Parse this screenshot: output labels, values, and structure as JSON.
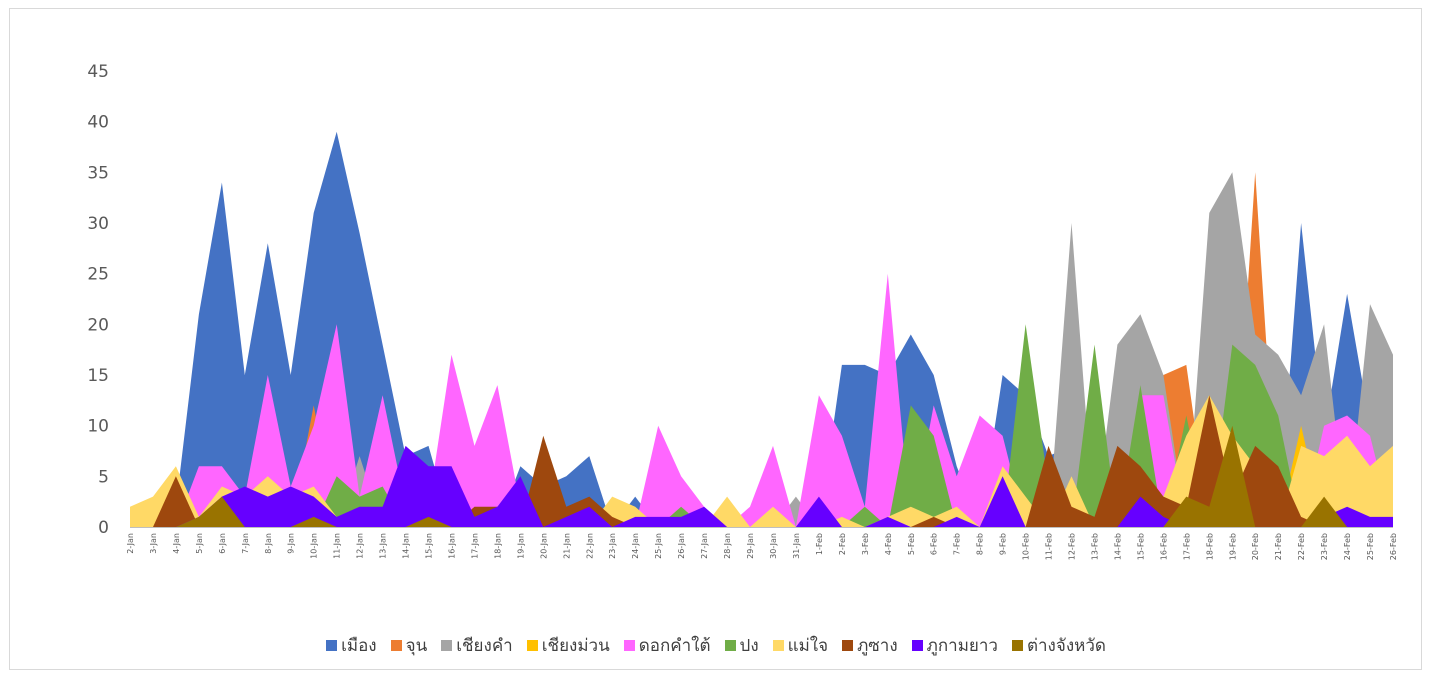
{
  "chart_data": {
    "type": "area",
    "title": "",
    "xlabel": "",
    "ylabel": "",
    "ylim": [
      0,
      45
    ],
    "yticks": [
      0,
      5,
      10,
      15,
      20,
      25,
      30,
      35,
      40,
      45
    ],
    "grid": false,
    "legend_position": "bottom",
    "categories": [
      "2-Jan",
      "3-Jan",
      "4-Jan",
      "5-Jan",
      "6-Jan",
      "7-Jan",
      "8-Jan",
      "9-Jan",
      "10-Jan",
      "11-Jan",
      "12-Jan",
      "13-Jan",
      "14-Jan",
      "15-Jan",
      "16-Jan",
      "17-Jan",
      "18-Jan",
      "19-Jan",
      "20-Jan",
      "21-Jan",
      "22-Jan",
      "23-Jan",
      "24-Jan",
      "25-Jan",
      "26-Jan",
      "27-Jan",
      "28-Jan",
      "29-Jan",
      "30-Jan",
      "31-Jan",
      "1-Feb",
      "2-Feb",
      "3-Feb",
      "4-Feb",
      "5-Feb",
      "6-Feb",
      "7-Feb",
      "8-Feb",
      "9-Feb",
      "10-Feb",
      "11-Feb",
      "12-Feb",
      "13-Feb",
      "14-Feb",
      "15-Feb",
      "16-Feb",
      "17-Feb",
      "18-Feb",
      "19-Feb",
      "20-Feb",
      "21-Feb",
      "22-Feb",
      "23-Feb",
      "24-Feb",
      "25-Feb",
      "26-Feb"
    ],
    "series": [
      {
        "name": "เมือง",
        "color": "#4472C4",
        "values": [
          0,
          0,
          2,
          21,
          34,
          15,
          28,
          15,
          31,
          39,
          29,
          18,
          7,
          8,
          0,
          0,
          0,
          6,
          4,
          5,
          7,
          0,
          3,
          0,
          0,
          0,
          0,
          0,
          0,
          0,
          0,
          16,
          16,
          15,
          19,
          15,
          6,
          0,
          15,
          13,
          7,
          8,
          0,
          0,
          0,
          0,
          0,
          0,
          0,
          0,
          0,
          30,
          9,
          23,
          10,
          9
        ]
      },
      {
        "name": "จุน",
        "color": "#ED7D31",
        "values": [
          0,
          0,
          0,
          0,
          0,
          0,
          0,
          0,
          12,
          0,
          0,
          0,
          0,
          0,
          0,
          0,
          0,
          0,
          0,
          0,
          0,
          0,
          0,
          0,
          0,
          0,
          0,
          0,
          0,
          0,
          0,
          0,
          0,
          0,
          0,
          0,
          0,
          0,
          0,
          0,
          0,
          0,
          0,
          0,
          0,
          15,
          16,
          0,
          0,
          35,
          0,
          0,
          0,
          0,
          0,
          0
        ]
      },
      {
        "name": "เชียงคำ",
        "color": "#A5A5A5",
        "values": [
          0,
          0,
          0,
          0,
          0,
          0,
          0,
          0,
          0,
          0,
          7,
          0,
          0,
          0,
          0,
          0,
          0,
          0,
          0,
          0,
          0,
          0,
          0,
          0,
          0,
          0,
          0,
          0,
          0,
          3,
          0,
          0,
          0,
          0,
          0,
          0,
          0,
          0,
          0,
          0,
          0,
          30,
          0,
          18,
          21,
          15,
          0,
          31,
          35,
          19,
          17,
          13,
          20,
          0,
          22,
          17
        ]
      },
      {
        "name": "เชียงม่วน",
        "color": "#FFC000",
        "values": [
          0,
          0,
          0,
          0,
          0,
          0,
          0,
          0,
          0,
          0,
          0,
          0,
          0,
          0,
          0,
          0,
          0,
          0,
          0,
          0,
          0,
          0,
          0,
          0,
          0,
          0,
          0,
          0,
          0,
          0,
          0,
          0,
          0,
          0,
          0,
          0,
          0,
          0,
          0,
          0,
          0,
          0,
          0,
          0,
          0,
          0,
          0,
          0,
          0,
          0,
          0,
          10,
          0,
          0,
          0,
          0
        ]
      },
      {
        "name": "ดอกคำใต้",
        "color": "#FF66FF",
        "values": [
          0,
          0,
          0,
          6,
          6,
          3,
          15,
          4,
          10,
          20,
          3,
          13,
          2,
          2,
          17,
          8,
          14,
          2,
          0,
          0,
          0,
          0,
          0,
          10,
          5,
          2,
          0,
          2,
          8,
          0,
          13,
          9,
          2,
          25,
          0,
          12,
          5,
          11,
          9,
          0,
          0,
          0,
          0,
          0,
          13,
          13,
          0,
          0,
          0,
          0,
          0,
          0,
          10,
          11,
          9,
          0
        ]
      },
      {
        "name": "ปง",
        "color": "#70AD47",
        "values": [
          0,
          0,
          0,
          0,
          0,
          0,
          0,
          0,
          0,
          5,
          3,
          4,
          0,
          0,
          0,
          0,
          0,
          0,
          0,
          0,
          0,
          0,
          0,
          0,
          2,
          0,
          0,
          0,
          0,
          0,
          0,
          0,
          2,
          0,
          12,
          9,
          0,
          0,
          0,
          20,
          4,
          0,
          18,
          0,
          14,
          0,
          11,
          0,
          18,
          16,
          11,
          0,
          0,
          0,
          0,
          0
        ]
      },
      {
        "name": "แม่ใจ",
        "color": "#FFD966",
        "values": [
          2,
          3,
          6,
          1,
          4,
          3,
          5,
          3,
          4,
          1,
          0,
          0,
          0,
          0,
          0,
          0,
          0,
          0,
          0,
          0,
          0,
          3,
          2,
          0,
          0,
          0,
          3,
          0,
          2,
          0,
          0,
          1,
          0,
          1,
          2,
          1,
          2,
          0,
          6,
          3,
          0,
          5,
          0,
          0,
          0,
          3,
          9,
          13,
          9,
          6,
          0,
          8,
          7,
          9,
          6,
          8
        ]
      },
      {
        "name": "ภูซาง",
        "color": "#9E480E",
        "values": [
          0,
          0,
          5,
          0,
          0,
          0,
          0,
          0,
          0,
          0,
          0,
          0,
          0,
          0,
          0,
          2,
          2,
          0,
          9,
          2,
          3,
          1,
          0,
          0,
          0,
          0,
          0,
          0,
          0,
          0,
          0,
          0,
          0,
          0,
          0,
          1,
          0,
          0,
          0,
          0,
          8,
          2,
          1,
          8,
          6,
          3,
          2,
          13,
          3,
          8,
          6,
          1,
          0,
          0,
          0,
          0
        ]
      },
      {
        "name": "ภูกามยาว",
        "color": "#6600FF",
        "values": [
          0,
          0,
          0,
          1,
          3,
          4,
          3,
          4,
          3,
          1,
          2,
          2,
          8,
          6,
          6,
          1,
          2,
          5,
          0,
          1,
          2,
          0,
          1,
          1,
          1,
          2,
          0,
          0,
          0,
          0,
          3,
          0,
          0,
          1,
          0,
          0,
          1,
          0,
          5,
          0,
          0,
          0,
          0,
          0,
          3,
          1,
          0,
          0,
          0,
          0,
          0,
          0,
          1,
          2,
          1,
          1
        ]
      },
      {
        "name": "ต่างจังหวัด",
        "color": "#997300",
        "values": [
          0,
          0,
          0,
          1,
          3,
          0,
          0,
          0,
          1,
          0,
          0,
          0,
          0,
          1,
          0,
          0,
          0,
          0,
          0,
          0,
          0,
          0,
          0,
          0,
          0,
          0,
          0,
          0,
          0,
          0,
          0,
          0,
          0,
          0,
          0,
          0,
          0,
          0,
          0,
          0,
          0,
          0,
          0,
          0,
          0,
          0,
          3,
          2,
          10,
          0,
          0,
          0,
          3,
          0,
          0,
          0
        ]
      }
    ]
  }
}
